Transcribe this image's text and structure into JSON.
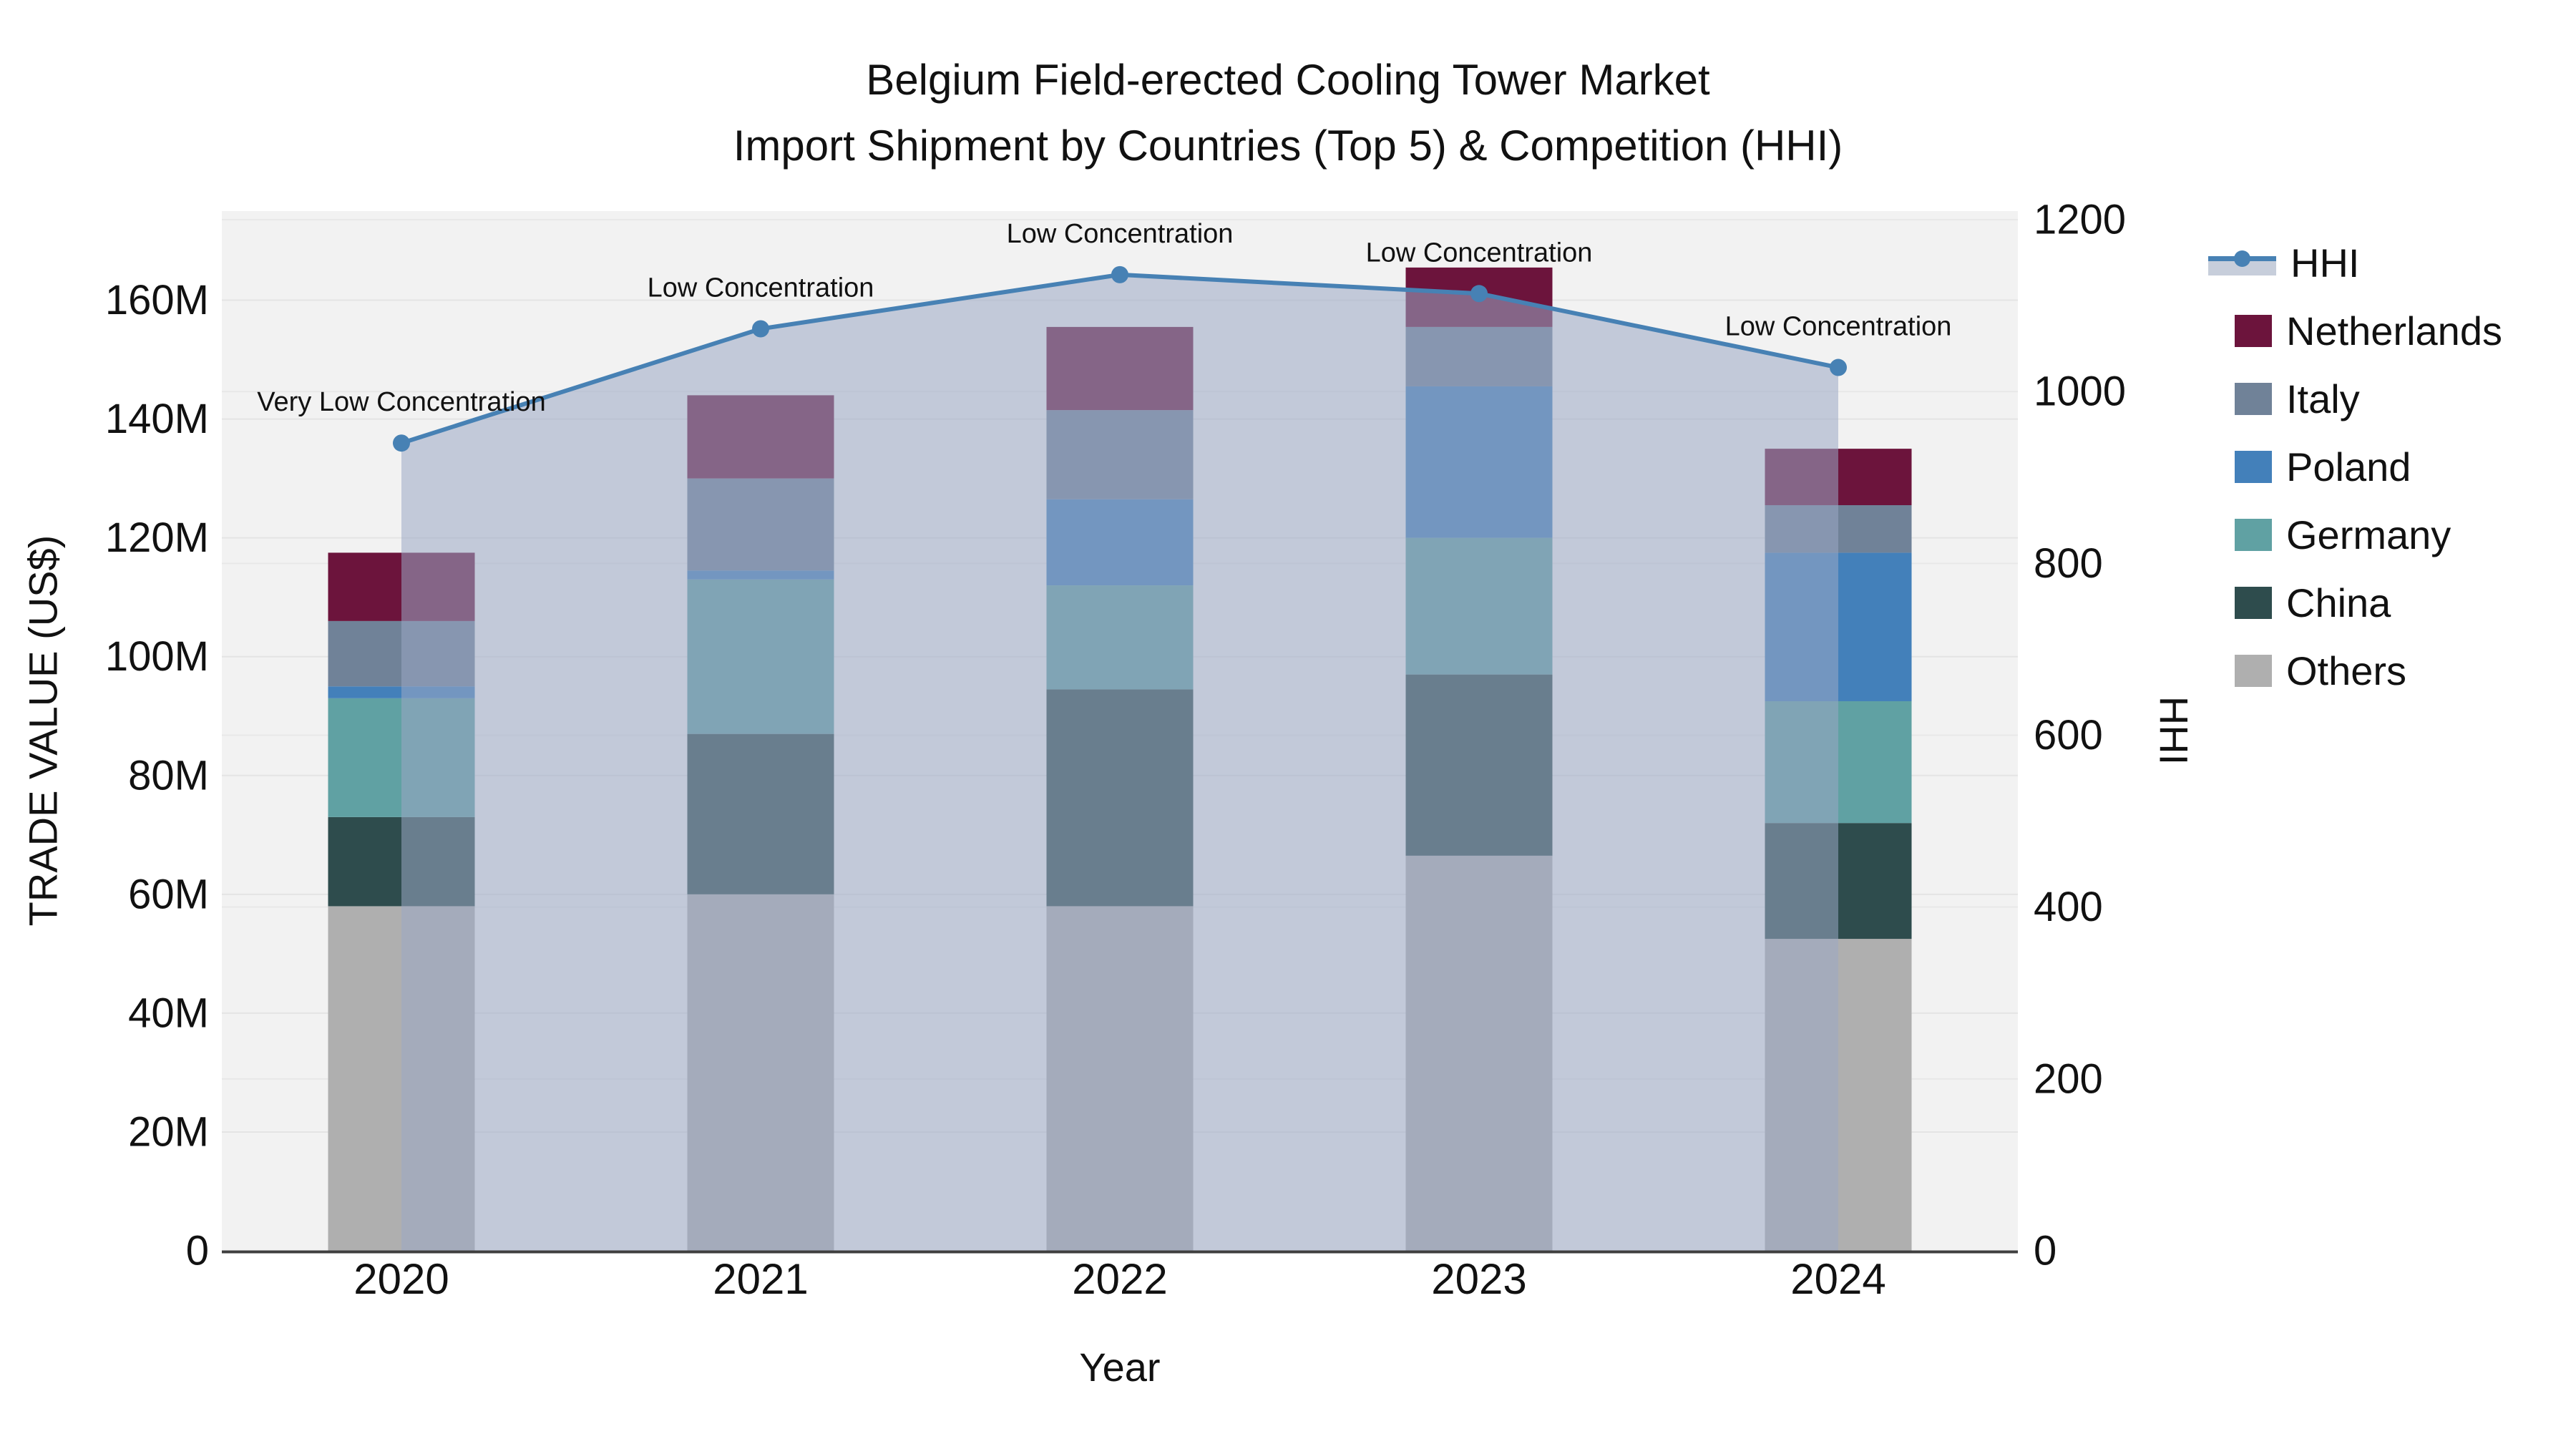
{
  "title": {
    "line1": "Belgium Field-erected Cooling Tower Market",
    "line2": "Import Shipment by Countries (Top 5) & Competition (HHI)"
  },
  "axes": {
    "left": {
      "label": "TRADE VALUE (US$)",
      "max": 175,
      "ticks": [
        {
          "v": 0,
          "label": "0"
        },
        {
          "v": 20,
          "label": "20M"
        },
        {
          "v": 40,
          "label": "40M"
        },
        {
          "v": 60,
          "label": "60M"
        },
        {
          "v": 80,
          "label": "80M"
        },
        {
          "v": 100,
          "label": "100M"
        },
        {
          "v": 120,
          "label": "120M"
        },
        {
          "v": 140,
          "label": "140M"
        },
        {
          "v": 160,
          "label": "160M"
        }
      ]
    },
    "right": {
      "label": "HHI",
      "max": 1210,
      "ticks": [
        {
          "v": 0,
          "label": "0"
        },
        {
          "v": 200,
          "label": "200"
        },
        {
          "v": 400,
          "label": "400"
        },
        {
          "v": 600,
          "label": "600"
        },
        {
          "v": 800,
          "label": "800"
        },
        {
          "v": 1000,
          "label": "1000"
        },
        {
          "v": 1200,
          "label": "1200"
        }
      ]
    },
    "x": {
      "label": "Year",
      "categories": [
        "2020",
        "2021",
        "2022",
        "2023",
        "2024"
      ]
    }
  },
  "chart_data": {
    "type": "bar+line",
    "title": "Belgium Field-erected Cooling Tower Market — Import Shipment by Countries (Top 5) & Competition (HHI)",
    "xlabel": "Year",
    "ylabel_left": "TRADE VALUE (US$)",
    "ylabel_right": "HHI",
    "categories": [
      "2020",
      "2021",
      "2022",
      "2023",
      "2024"
    ],
    "stack_order_bottom_to_top": [
      "Others",
      "China",
      "Germany",
      "Poland",
      "Italy",
      "Netherlands"
    ],
    "series": [
      {
        "name": "Others",
        "unit": "M US$",
        "values": [
          58.0,
          60.0,
          58.0,
          66.5,
          52.5
        ]
      },
      {
        "name": "China",
        "unit": "M US$",
        "values": [
          15.0,
          27.0,
          36.5,
          30.5,
          19.5
        ]
      },
      {
        "name": "Germany",
        "unit": "M US$",
        "values": [
          20.0,
          26.0,
          17.5,
          23.0,
          20.5
        ]
      },
      {
        "name": "Poland",
        "unit": "M US$",
        "values": [
          2.0,
          1.5,
          14.5,
          25.5,
          25.0
        ]
      },
      {
        "name": "Italy",
        "unit": "M US$",
        "values": [
          11.0,
          15.5,
          15.0,
          10.0,
          8.0
        ]
      },
      {
        "name": "Netherlands",
        "unit": "M US$",
        "values": [
          11.5,
          14.0,
          14.0,
          10.0,
          9.5
        ]
      }
    ],
    "bar_totals": [
      117.5,
      144.0,
      155.5,
      165.5,
      135.0
    ],
    "line_series": {
      "name": "HHI",
      "values": [
        940,
        1073,
        1136,
        1114,
        1028
      ],
      "axis": "right",
      "area_fill": true
    },
    "annotations": [
      "Very Low Concentration",
      "Low Concentration",
      "Low Concentration",
      "Low Concentration",
      "Low Concentration"
    ],
    "ylim_left": [
      0,
      175
    ],
    "ylim_right": [
      0,
      1210
    ],
    "grid": true,
    "legend_position": "right"
  },
  "legend": {
    "items": [
      {
        "id": "hhi",
        "label": "HHI"
      },
      {
        "id": "netherlands",
        "label": "Netherlands"
      },
      {
        "id": "italy",
        "label": "Italy"
      },
      {
        "id": "poland",
        "label": "Poland"
      },
      {
        "id": "germany",
        "label": "Germany"
      },
      {
        "id": "china",
        "label": "China"
      },
      {
        "id": "others",
        "label": "Others"
      }
    ]
  },
  "colors": {
    "series": {
      "Netherlands": "#6C143C",
      "Italy": "#708298",
      "Poland": "#4380BA",
      "Germany": "#60A1A3",
      "China": "#2E4C4D",
      "Others": "#AFAFAF"
    },
    "hhi_line": "#4781B4",
    "hhi_area": "rgba(154,168,196,0.55)",
    "plot_bg": "#F2F2F2",
    "grid_line": "#E4E4E4",
    "axis_line": "#3F3F3F",
    "text": "#111111"
  }
}
